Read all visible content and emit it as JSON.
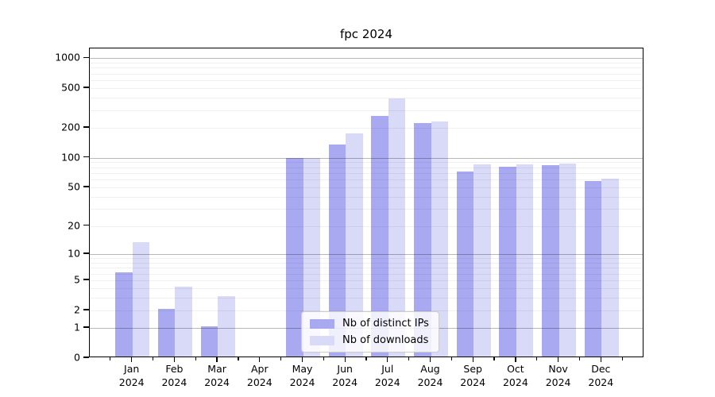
{
  "title": "fpc 2024",
  "legend": {
    "items": [
      {
        "label": "Nb of distinct IPs",
        "color": "#a9a9f2"
      },
      {
        "label": "Nb of downloads",
        "color": "#d9d9f8"
      }
    ]
  },
  "axis": {
    "y_tick_labels": [
      "0",
      "1",
      "2",
      "5",
      "10",
      "20",
      "50",
      "100",
      "200",
      "500",
      "1000"
    ],
    "y_tick_values": [
      0,
      1,
      2,
      5,
      10,
      20,
      50,
      100,
      200,
      500,
      1000
    ],
    "y_major_grid_values": [
      1,
      10,
      100,
      1000
    ],
    "months": [
      "Jan",
      "Feb",
      "Mar",
      "Apr",
      "May",
      "Jun",
      "Jul",
      "Aug",
      "Sep",
      "Oct",
      "Nov",
      "Dec"
    ],
    "year": "2024"
  },
  "chart_data": {
    "type": "bar",
    "title": "fpc 2024",
    "categories": [
      "Jan 2024",
      "Feb 2024",
      "Mar 2024",
      "Apr 2024",
      "May 2024",
      "Jun 2024",
      "Jul 2024",
      "Aug 2024",
      "Sep 2024",
      "Oct 2024",
      "Nov 2024",
      "Dec 2024"
    ],
    "series": [
      {
        "name": "Nb of distinct IPs",
        "color": "#a9a9f2",
        "values": [
          6,
          2,
          1,
          0,
          95,
          130,
          255,
          215,
          70,
          78,
          81,
          56
        ]
      },
      {
        "name": "Nb of downloads",
        "color": "#d9d9f8",
        "values": [
          13,
          4,
          3,
          0,
          95,
          170,
          380,
          225,
          83,
          83,
          84,
          59
        ]
      }
    ],
    "xlabel": "",
    "ylabel": "",
    "yscale": "log1p",
    "ylim": [
      0,
      1250
    ],
    "y_ticks": [
      0,
      1,
      2,
      5,
      10,
      20,
      50,
      100,
      200,
      500,
      1000
    ],
    "grid": true,
    "legend_position": "lower center"
  }
}
